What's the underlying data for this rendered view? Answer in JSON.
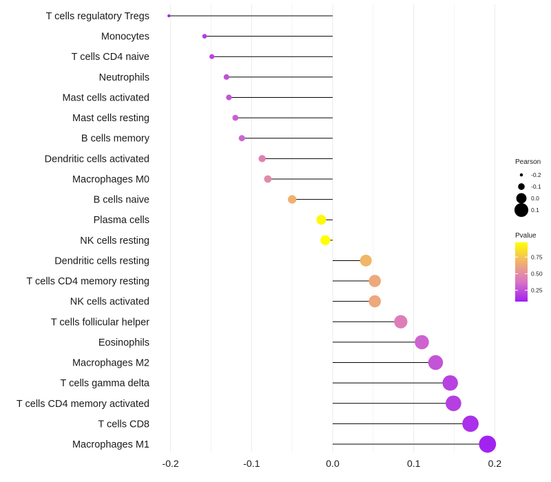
{
  "chart_data": {
    "type": "lollipop",
    "title": "",
    "xlabel": "",
    "ylabel": "",
    "xlim": [
      -0.22,
      0.21
    ],
    "x_ticks": [
      -0.2,
      -0.1,
      0.0,
      0.1,
      0.2
    ],
    "x_tick_labels": [
      "-0.2",
      "-0.1",
      "0.0",
      "0.1",
      "0.2"
    ],
    "series": [
      {
        "name": "T cells regulatory  Tregs",
        "pearson": -0.202,
        "pvalue": 0.1
      },
      {
        "name": "Monocytes",
        "pearson": -0.158,
        "pvalue": 0.2
      },
      {
        "name": "T cells CD4 naive",
        "pearson": -0.149,
        "pvalue": 0.22
      },
      {
        "name": "Neutrophils",
        "pearson": -0.131,
        "pvalue": 0.27
      },
      {
        "name": "Mast cells activated",
        "pearson": -0.128,
        "pvalue": 0.28
      },
      {
        "name": "Mast cells resting",
        "pearson": -0.12,
        "pvalue": 0.32
      },
      {
        "name": "B cells memory",
        "pearson": -0.112,
        "pvalue": 0.35
      },
      {
        "name": "Dendritic cells activated",
        "pearson": -0.087,
        "pvalue": 0.48
      },
      {
        "name": "Macrophages M0",
        "pearson": -0.08,
        "pvalue": 0.52
      },
      {
        "name": "B cells naive",
        "pearson": -0.05,
        "pvalue": 0.72
      },
      {
        "name": "Plasma cells",
        "pearson": -0.014,
        "pvalue": 0.95
      },
      {
        "name": "NK cells resting",
        "pearson": -0.009,
        "pvalue": 0.97
      },
      {
        "name": "Dendritic cells resting",
        "pearson": 0.041,
        "pvalue": 0.74
      },
      {
        "name": "T cells CD4 memory resting",
        "pearson": 0.052,
        "pvalue": 0.68
      },
      {
        "name": "NK cells activated",
        "pearson": 0.052,
        "pvalue": 0.68
      },
      {
        "name": "T cells follicular helper",
        "pearson": 0.084,
        "pvalue": 0.46
      },
      {
        "name": "Eosinophils",
        "pearson": 0.11,
        "pvalue": 0.34
      },
      {
        "name": "Macrophages M2",
        "pearson": 0.127,
        "pvalue": 0.28
      },
      {
        "name": "T cells gamma delta",
        "pearson": 0.145,
        "pvalue": 0.21
      },
      {
        "name": "T cells CD4 memory activated",
        "pearson": 0.149,
        "pvalue": 0.2
      },
      {
        "name": "T cells CD8",
        "pearson": 0.17,
        "pvalue": 0.14
      },
      {
        "name": "Macrophages M1",
        "pearson": 0.191,
        "pvalue": 0.09
      }
    ],
    "size_legend": {
      "title": "Pearson",
      "labels": [
        "-0.2",
        "-0.1",
        "0.0",
        "0.1"
      ],
      "values": [
        -0.2,
        -0.1,
        0.0,
        0.1
      ]
    },
    "color_legend": {
      "title": "Pvalue",
      "labels": [
        "0.75",
        "0.50",
        "0.25"
      ],
      "values": [
        0.75,
        0.5,
        0.25
      ],
      "range": [
        0.08,
        0.97
      ],
      "colors": [
        "#a020f0",
        "#d873c8",
        "#f0b070",
        "#ffff00"
      ]
    },
    "grid": true,
    "legend_position": "right"
  }
}
